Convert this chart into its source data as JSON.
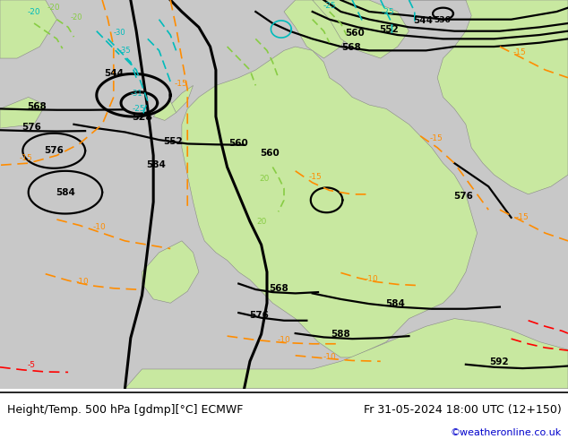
{
  "title_left": "Height/Temp. 500 hPa [gdmp][°C] ECMWF",
  "title_right": "Fr 31-05-2024 18:00 UTC (12+150)",
  "credit": "©weatheronline.co.uk",
  "land_color": "#c8e8a0",
  "sea_color": "#c8c8c8",
  "coast_color": "#888888",
  "geo_color": "#000000",
  "orange_color": "#ff8c00",
  "cyan_color": "#00bbbb",
  "green_color": "#88cc00",
  "red_color": "#ff0000",
  "credit_color": "#0000cc",
  "figsize": [
    6.34,
    4.9
  ],
  "dpi": 100
}
